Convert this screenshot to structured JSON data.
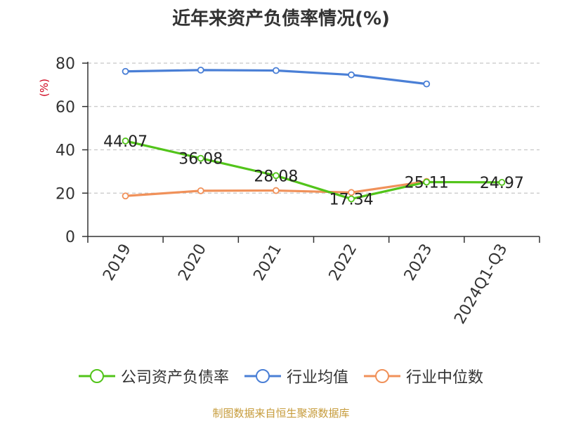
{
  "chart_data": {
    "type": "line",
    "title": "近年来资产负债率情况(%)",
    "ylabel": "(%)",
    "xlabel": "",
    "categories": [
      "2019",
      "2020",
      "2021",
      "2022",
      "2023",
      "2024Q1-Q3"
    ],
    "ylim": [
      0,
      80
    ],
    "yticks": [
      0,
      20,
      40,
      60,
      80
    ],
    "grid": true,
    "legend_position": "bottom",
    "series": [
      {
        "name": "公司资产负债率",
        "color": "#52c41a",
        "values": [
          44.07,
          36.08,
          28.08,
          17.34,
          25.11,
          24.97
        ],
        "labels": [
          "44.07",
          "36.08",
          "28.08",
          "17.34",
          "25.11",
          "24.97"
        ]
      },
      {
        "name": "行业均值",
        "color": "#4a7fd6",
        "values": [
          76.2,
          76.8,
          76.6,
          74.6,
          70.4,
          null
        ]
      },
      {
        "name": "行业中位数",
        "color": "#f0915a",
        "values": [
          18.7,
          21.1,
          21.2,
          20.3,
          25.4,
          null
        ]
      }
    ]
  },
  "footer": {
    "source": "制图数据来自恒生聚源数据库"
  }
}
